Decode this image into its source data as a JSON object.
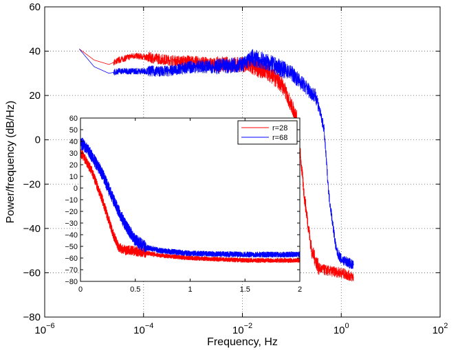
{
  "chart_data": [
    {
      "type": "line",
      "id": "main",
      "x_scale": "log",
      "xlabel": "Frequency, Hz",
      "ylabel": "Power/frequency (dB/Hz)",
      "xlim_exp": [
        -6,
        2
      ],
      "ylim": [
        -80,
        60
      ],
      "x_ticks_exp": [
        -6,
        -4,
        -2,
        0,
        2
      ],
      "x_tick_base": "10",
      "y_ticks": [
        -80,
        -60,
        -40,
        -20,
        0,
        20,
        40,
        60
      ],
      "grid": true,
      "series": [
        {
          "name": "r=28",
          "color": "#ff0000",
          "noise_amp": [
            0,
            1.5,
            2.5,
            3,
            3.5,
            4,
            3.5,
            2.5,
            2
          ],
          "points": [
            [
              -5.3,
              41
            ],
            [
              -5.0,
              36
            ],
            [
              -4.7,
              34
            ],
            [
              -4.5,
              36
            ],
            [
              -4.2,
              38
            ],
            [
              -3.5,
              36
            ],
            [
              -3.0,
              35
            ],
            [
              -2.5,
              34
            ],
            [
              -2.0,
              34
            ],
            [
              -1.5,
              31
            ],
            [
              -1.2,
              25
            ],
            [
              -0.9,
              10
            ],
            [
              -0.75,
              -25
            ],
            [
              -0.6,
              -50
            ],
            [
              -0.45,
              -58
            ],
            [
              -0.3,
              -59
            ],
            [
              0.0,
              -60
            ],
            [
              0.25,
              -62
            ]
          ]
        },
        {
          "name": "r=68",
          "color": "#0000ff",
          "noise_amp": [
            0,
            1.5,
            2.5,
            3,
            3.5,
            4,
            3.5,
            2.5,
            2
          ],
          "points": [
            [
              -5.3,
              41
            ],
            [
              -5.0,
              33
            ],
            [
              -4.7,
              30
            ],
            [
              -4.5,
              31
            ],
            [
              -4.2,
              31
            ],
            [
              -3.5,
              31
            ],
            [
              -3.0,
              33
            ],
            [
              -2.5,
              33
            ],
            [
              -2.0,
              34
            ],
            [
              -1.8,
              37
            ],
            [
              -1.5,
              35
            ],
            [
              -1.0,
              30
            ],
            [
              -0.5,
              19
            ],
            [
              -0.35,
              5
            ],
            [
              -0.25,
              -25
            ],
            [
              -0.1,
              -50
            ],
            [
              0.0,
              -54
            ],
            [
              0.2,
              -56
            ],
            [
              0.25,
              -57
            ]
          ]
        }
      ]
    },
    {
      "type": "line",
      "id": "inset",
      "x_scale": "linear",
      "xlim": [
        0,
        2
      ],
      "ylim": [
        -80,
        60
      ],
      "x_ticks": [
        "0",
        "0.5",
        "1",
        "1.5",
        "2"
      ],
      "y_ticks": [
        -80,
        -70,
        -60,
        -50,
        -40,
        -30,
        -20,
        -10,
        0,
        10,
        20,
        30,
        40,
        50,
        60
      ],
      "legend": {
        "position": "top-right",
        "entries": [
          {
            "label": "r=28",
            "color": "#ff0000"
          },
          {
            "label": "r=68",
            "color": "#0000ff"
          }
        ]
      },
      "series": [
        {
          "name": "r=28",
          "color": "#ff0000",
          "noise_amp": 2,
          "points": [
            [
              0.0,
              30
            ],
            [
              0.02,
              28
            ],
            [
              0.1,
              15
            ],
            [
              0.2,
              -10
            ],
            [
              0.3,
              -40
            ],
            [
              0.35,
              -51
            ],
            [
              0.4,
              -53
            ],
            [
              0.5,
              -54
            ],
            [
              0.75,
              -58
            ],
            [
              1.0,
              -60
            ],
            [
              1.5,
              -62
            ],
            [
              2.0,
              -62
            ]
          ]
        },
        {
          "name": "r=68",
          "color": "#0000ff",
          "noise_amp": 2.5,
          "points": [
            [
              0.0,
              37
            ],
            [
              0.02,
              38
            ],
            [
              0.1,
              28
            ],
            [
              0.2,
              12
            ],
            [
              0.3,
              -10
            ],
            [
              0.4,
              -30
            ],
            [
              0.5,
              -45
            ],
            [
              0.6,
              -51
            ],
            [
              0.75,
              -54
            ],
            [
              1.0,
              -56
            ],
            [
              1.5,
              -57
            ],
            [
              2.0,
              -57
            ]
          ]
        }
      ]
    }
  ]
}
